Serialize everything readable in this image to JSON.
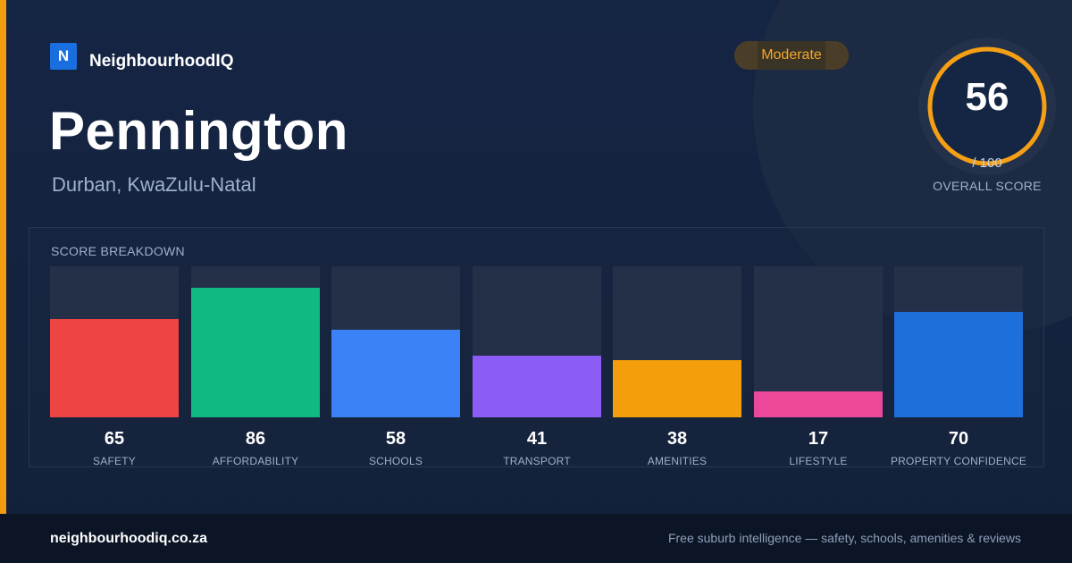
{
  "brand": {
    "logo_letter": "N",
    "name": "NeighbourhoodIQ"
  },
  "suburb": {
    "name": "Pennington",
    "location": "Durban, KwaZulu-Natal"
  },
  "badge": {
    "label": "Moderate"
  },
  "overall": {
    "score": "56",
    "denominator": "/ 100",
    "label": "OVERALL SCORE",
    "fraction": 0.56
  },
  "breakdown": {
    "title": "SCORE BREAKDOWN",
    "items": [
      {
        "label": "SAFETY",
        "value": "65",
        "color": "#ef4444"
      },
      {
        "label": "AFFORDABILITY",
        "value": "86",
        "color": "#10b981"
      },
      {
        "label": "SCHOOLS",
        "value": "58",
        "color": "#3b82f6"
      },
      {
        "label": "TRANSPORT",
        "value": "41",
        "color": "#8b5cf6"
      },
      {
        "label": "AMENITIES",
        "value": "38",
        "color": "#f59e0b"
      },
      {
        "label": "LIFESTYLE",
        "value": "17",
        "color": "#ec4899"
      },
      {
        "label": "PROPERTY CONFIDENCE",
        "value": "70",
        "color": "#1d6fdc"
      }
    ]
  },
  "footer": {
    "url": "neighbourhoodiq.co.za",
    "tagline": "Free suburb intelligence — safety, schools, amenities & reviews"
  },
  "colors": {
    "accent": "#f39c12",
    "background": "#132038",
    "ring": "#f5a014",
    "ring_track": "#24314a"
  }
}
